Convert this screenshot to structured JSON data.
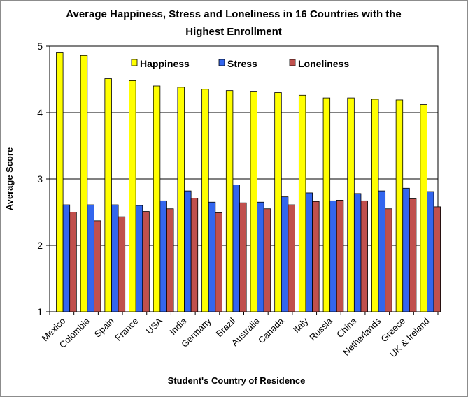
{
  "chart_data": {
    "type": "bar",
    "title": "Average Happiness, Stress and Loneliness in 16 Countries with the Highest Enrollment",
    "title_lines": [
      "Average Happiness, Stress and Loneliness in 16 Countries with the",
      "Highest Enrollment"
    ],
    "xlabel": "Student's Country of Residence",
    "ylabel": "Average Score",
    "ylim": [
      1,
      5
    ],
    "yticks": [
      "1",
      "2",
      "3",
      "4",
      "5"
    ],
    "grid": true,
    "legend_placement": "top-center",
    "categories": [
      "Mexico",
      "Colombia",
      "Spain",
      "France",
      "USA",
      "India",
      "Germany",
      "Brazil",
      "Australia",
      "Canada",
      "Italy",
      "Russia",
      "China",
      "Netherlands",
      "Greece",
      "UK & Ireland"
    ],
    "series": [
      {
        "name": "Happiness",
        "color": "#ffff00",
        "values": [
          4.9,
          4.86,
          4.51,
          4.48,
          4.4,
          4.38,
          4.35,
          4.33,
          4.32,
          4.3,
          4.26,
          4.22,
          4.22,
          4.2,
          4.19,
          4.12
        ]
      },
      {
        "name": "Stress",
        "color": "#3366ee",
        "values": [
          2.61,
          2.61,
          2.61,
          2.6,
          2.67,
          2.82,
          2.65,
          2.91,
          2.65,
          2.73,
          2.79,
          2.67,
          2.78,
          2.82,
          2.86,
          2.81
        ]
      },
      {
        "name": "Loneliness",
        "color": "#c0504d",
        "values": [
          2.5,
          2.37,
          2.43,
          2.51,
          2.55,
          2.71,
          2.49,
          2.64,
          2.55,
          2.61,
          2.66,
          2.68,
          2.67,
          2.55,
          2.7,
          2.58
        ]
      }
    ]
  }
}
